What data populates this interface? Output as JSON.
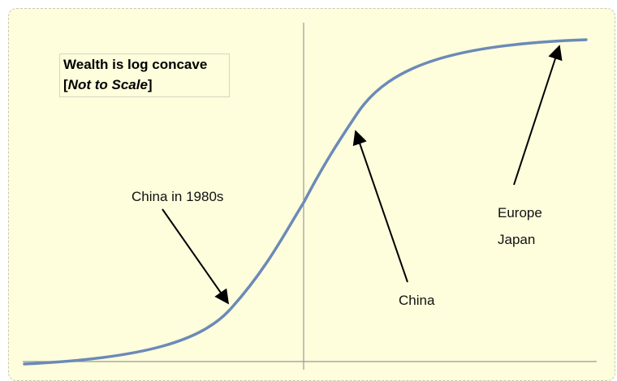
{
  "legend": {
    "title": "Wealth is log concave",
    "subtitle_open": "[",
    "subtitle": "Not to Scale",
    "subtitle_close": "]"
  },
  "annotations": {
    "china_1980s": "China in 1980s",
    "china": "China",
    "europe": "Europe",
    "japan": "Japan"
  },
  "colors": {
    "curve": "#6b8ab8",
    "background": "#fefedc",
    "axis": "#999999",
    "arrow": "#000000"
  }
}
